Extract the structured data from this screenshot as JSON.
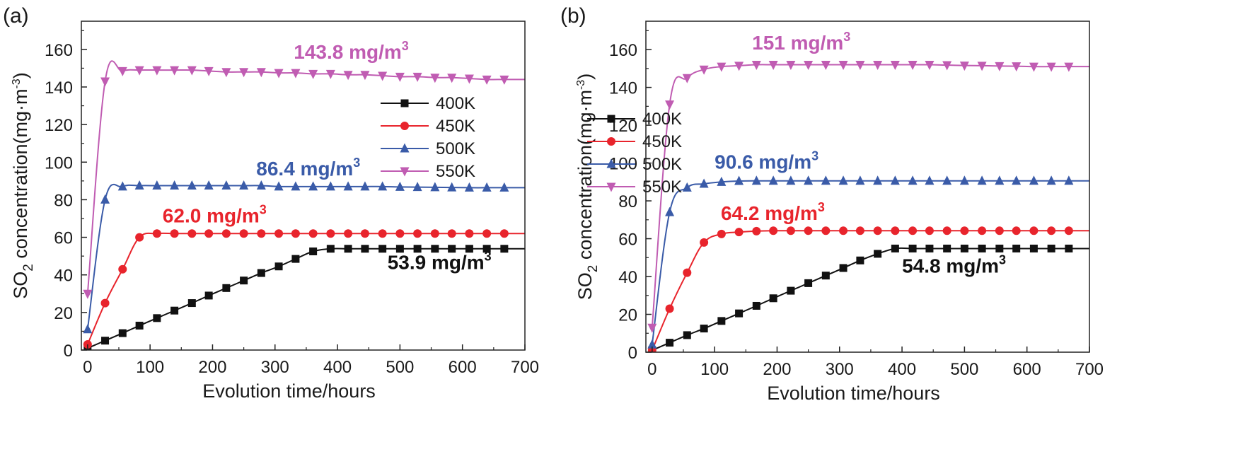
{
  "chart_data": [
    {
      "type": "line",
      "panel_label": "(a)",
      "xlabel": "Evolution time/hours",
      "ylabel": {
        "main": "SO",
        "sub": "2",
        "rest": " concentration(mg·m",
        "sup": "-3",
        "end": ")"
      },
      "xlim": [
        -10,
        700
      ],
      "ylim": [
        0,
        175
      ],
      "xticks": [
        0,
        100,
        200,
        300,
        400,
        500,
        600,
        700
      ],
      "yticks": [
        0,
        20,
        40,
        60,
        80,
        100,
        120,
        140,
        160
      ],
      "legend_position": "right",
      "series": [
        {
          "name": "400K",
          "color": "#111111",
          "marker": "square",
          "x": [
            0,
            28,
            56,
            83,
            111,
            139,
            167,
            194,
            222,
            250,
            278,
            306,
            333,
            361,
            389,
            417,
            444,
            472,
            500,
            528,
            556,
            583,
            611,
            639,
            667
          ],
          "y": [
            1,
            5,
            9,
            13,
            17,
            21,
            25,
            29,
            33,
            37,
            41,
            44.5,
            48.5,
            52.5,
            53.9,
            53.9,
            53.9,
            53.9,
            53.9,
            53.9,
            53.9,
            53.9,
            53.9,
            53.9,
            53.9
          ],
          "line_end": 700
        },
        {
          "name": "450K",
          "color": "#e8242c",
          "marker": "circle",
          "x": [
            0,
            28,
            56,
            83,
            111,
            139,
            167,
            194,
            222,
            250,
            278,
            306,
            333,
            361,
            389,
            417,
            444,
            472,
            500,
            528,
            556,
            583,
            611,
            639,
            667
          ],
          "y": [
            3,
            25,
            43,
            60,
            62,
            62,
            62,
            62,
            62,
            62,
            62,
            62,
            62,
            62,
            62,
            62,
            62,
            62,
            62,
            62,
            62,
            62,
            62,
            62,
            62
          ],
          "line_end": 700
        },
        {
          "name": "500K",
          "color": "#3a5ba8",
          "marker": "triangle-up",
          "x": [
            0,
            28,
            56,
            83,
            111,
            139,
            167,
            194,
            222,
            250,
            278,
            306,
            333,
            361,
            389,
            417,
            444,
            472,
            500,
            528,
            556,
            583,
            611,
            639,
            667
          ],
          "y": [
            11,
            80,
            87,
            87.5,
            87.5,
            87.5,
            87.5,
            87.5,
            87.5,
            87.5,
            87.5,
            87,
            87,
            87,
            87,
            87,
            87,
            87,
            86.8,
            86.7,
            86.6,
            86.5,
            86.4,
            86.4,
            86.4
          ],
          "line_end": 700
        },
        {
          "name": "550K",
          "color": "#c05cb2",
          "marker": "triangle-down",
          "x": [
            0,
            28,
            56,
            83,
            111,
            139,
            167,
            194,
            222,
            250,
            278,
            306,
            333,
            361,
            389,
            417,
            444,
            472,
            500,
            528,
            556,
            583,
            611,
            639,
            667
          ],
          "y": [
            30,
            143,
            148.5,
            149,
            149,
            149,
            149,
            148.5,
            148,
            148,
            148,
            147.5,
            147.5,
            147,
            147,
            146.5,
            146.5,
            146,
            145.5,
            145.5,
            145,
            145,
            144.5,
            144,
            144
          ],
          "line_end": 700
        }
      ],
      "annotations": [
        {
          "text": "143.8 mg/m",
          "sup": "3",
          "color": "#c05cb2",
          "x": 330,
          "y": 155
        },
        {
          "text": "86.4 mg/m",
          "sup": "3",
          "color": "#3a5ba8",
          "x": 270,
          "y": 93
        },
        {
          "text": "62.0 mg/m",
          "sup": "3",
          "color": "#e8242c",
          "x": 120,
          "y": 68
        },
        {
          "text": "53.9 mg/m",
          "sup": "3",
          "color": "#111111",
          "x": 480,
          "y": 43
        }
      ]
    },
    {
      "type": "line",
      "panel_label": "(b)",
      "xlabel": "Evolution time/hours",
      "ylabel": {
        "main": "SO",
        "sub": "2",
        "rest": " concentration(mg·m",
        "sup": "-3",
        "end": ")"
      },
      "xlim": [
        -10,
        700
      ],
      "ylim": [
        0,
        175
      ],
      "xticks": [
        0,
        100,
        200,
        300,
        400,
        500,
        600,
        700
      ],
      "yticks": [
        0,
        20,
        40,
        60,
        80,
        100,
        120,
        140,
        160
      ],
      "legend_position": "right",
      "series": [
        {
          "name": "400K",
          "color": "#111111",
          "marker": "square",
          "x": [
            0,
            28,
            56,
            83,
            111,
            139,
            167,
            194,
            222,
            250,
            278,
            306,
            333,
            361,
            389,
            417,
            444,
            472,
            500,
            528,
            556,
            583,
            611,
            639,
            667
          ],
          "y": [
            1,
            5,
            9,
            12.5,
            16.5,
            20.5,
            24.5,
            28.5,
            32.5,
            36.5,
            40.5,
            44.5,
            48.5,
            52,
            54.8,
            54.8,
            54.8,
            54.8,
            54.8,
            54.8,
            54.8,
            54.8,
            54.8,
            54.8,
            54.8
          ],
          "line_end": 700
        },
        {
          "name": "450K",
          "color": "#e8242c",
          "marker": "circle",
          "x": [
            0,
            28,
            56,
            83,
            111,
            139,
            167,
            194,
            222,
            250,
            278,
            306,
            333,
            361,
            389,
            417,
            444,
            472,
            500,
            528,
            556,
            583,
            611,
            639,
            667
          ],
          "y": [
            1,
            23,
            42,
            58,
            62.5,
            63.5,
            64,
            64.2,
            64.2,
            64.2,
            64.2,
            64.2,
            64.2,
            64.2,
            64.2,
            64.2,
            64.2,
            64.2,
            64.2,
            64.2,
            64.2,
            64.2,
            64.2,
            64.2,
            64.2
          ],
          "line_end": 700
        },
        {
          "name": "500K",
          "color": "#3a5ba8",
          "marker": "triangle-up",
          "x": [
            0,
            28,
            56,
            83,
            111,
            139,
            167,
            194,
            222,
            250,
            278,
            306,
            333,
            361,
            389,
            417,
            444,
            472,
            500,
            528,
            556,
            583,
            611,
            639,
            667
          ],
          "y": [
            4,
            74,
            87,
            89,
            90,
            90.5,
            90.6,
            90.6,
            90.6,
            90.6,
            90.6,
            90.6,
            90.6,
            90.6,
            90.6,
            90.6,
            90.6,
            90.6,
            90.6,
            90.6,
            90.6,
            90.6,
            90.6,
            90.6,
            90.6
          ],
          "line_end": 700
        },
        {
          "name": "550K",
          "color": "#c05cb2",
          "marker": "triangle-down",
          "x": [
            0,
            28,
            56,
            83,
            111,
            139,
            167,
            194,
            222,
            250,
            278,
            306,
            333,
            361,
            389,
            417,
            444,
            472,
            500,
            528,
            556,
            583,
            611,
            639,
            667
          ],
          "y": [
            13,
            131,
            145,
            149.5,
            151,
            151.5,
            152,
            152,
            152,
            152,
            152,
            152,
            152,
            152,
            152,
            152,
            152,
            151.8,
            151.6,
            151.5,
            151.3,
            151.2,
            151,
            151,
            151
          ],
          "line_end": 700
        }
      ],
      "annotations": [
        {
          "text": "151 mg/m",
          "sup": "3",
          "color": "#c05cb2",
          "x": 160,
          "y": 160
        },
        {
          "text": "90.6 mg/m",
          "sup": "3",
          "color": "#3a5ba8",
          "x": 100,
          "y": 97
        },
        {
          "text": "64.2 mg/m",
          "sup": "3",
          "color": "#e8242c",
          "x": 110,
          "y": 70
        },
        {
          "text": "54.8 mg/m",
          "sup": "3",
          "color": "#111111",
          "x": 400,
          "y": 42
        }
      ]
    }
  ]
}
